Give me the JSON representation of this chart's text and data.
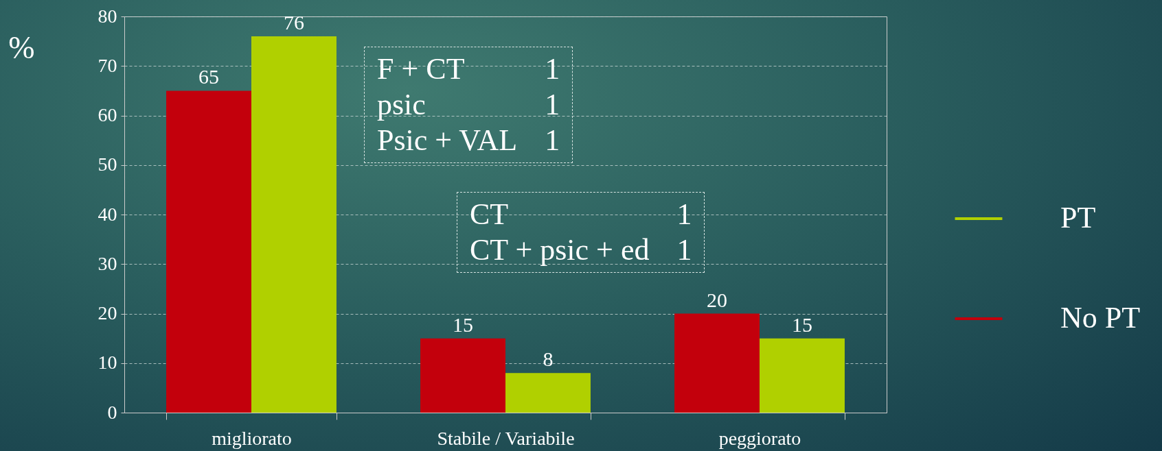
{
  "chart_data": {
    "type": "bar",
    "ylabel": "%",
    "categories": [
      "migliorato",
      "Stabile / Variabile",
      "peggiorato"
    ],
    "series": [
      {
        "name": "No PT",
        "color": "#c3000c",
        "values": [
          65,
          15,
          20
        ]
      },
      {
        "name": "PT",
        "color": "#b0d000",
        "values": [
          76,
          8,
          15
        ]
      }
    ],
    "ylim": [
      0,
      80
    ],
    "yticks": [
      0,
      10,
      20,
      30,
      40,
      50,
      60,
      70,
      80
    ],
    "grid": "y",
    "legend": "right",
    "data_labels": true,
    "annotations": [
      "F + CT 1",
      "psic 1",
      "Psic + VAL 1",
      "CT 1",
      "CT + psic + ed 1"
    ]
  }
}
